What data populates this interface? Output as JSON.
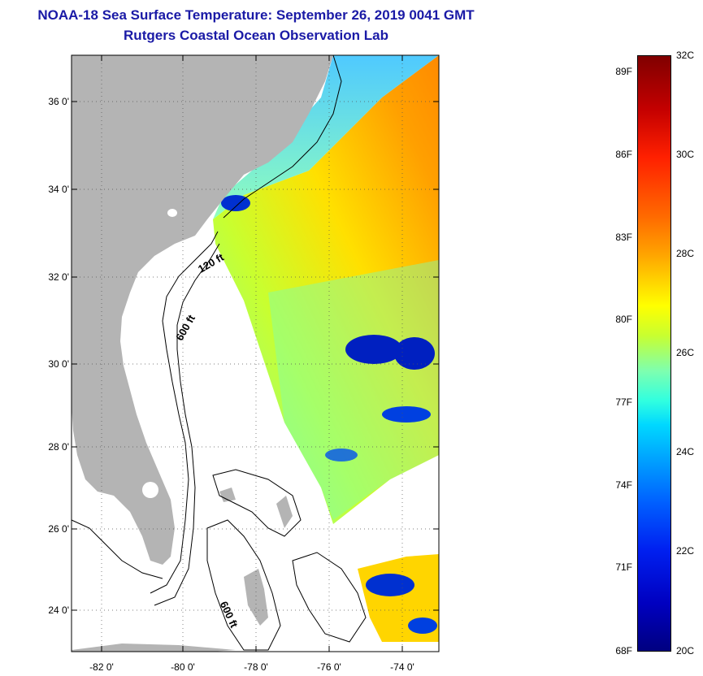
{
  "title": "NOAA-18 Sea Surface Temperature:  September 26, 2019 0041 GMT",
  "subtitle": "Rutgers Coastal Ocean Observation Lab",
  "map": {
    "lat_labels": [
      "36 0'",
      "34 0'",
      "32 0'",
      "30 0'",
      "28 0'",
      "26 0'",
      "24 0'"
    ],
    "lon_labels": [
      "-82 0'",
      "-80 0'",
      "-78 0'",
      "-76 0'",
      "-74 0'"
    ],
    "contour_labels": [
      "120 ft",
      "600 ft",
      "600 ft"
    ],
    "colors": {
      "land": "#b4b4b4",
      "ocean_no_data": "#ffffff",
      "grid": "#555555"
    }
  },
  "colorbar": {
    "fahrenheit_labels": [
      "89F",
      "86F",
      "83F",
      "80F",
      "77F",
      "74F",
      "71F",
      "68F"
    ],
    "celsius_labels": [
      "32C",
      "30C",
      "28C",
      "26C",
      "24C",
      "22C",
      "20C"
    ],
    "range_c": [
      20,
      32
    ],
    "colors": [
      "#000080",
      "#0000c0",
      "#0060ff",
      "#00d8ff",
      "#7dffb0",
      "#ffff00",
      "#ffa000",
      "#ff2000",
      "#800000"
    ]
  }
}
